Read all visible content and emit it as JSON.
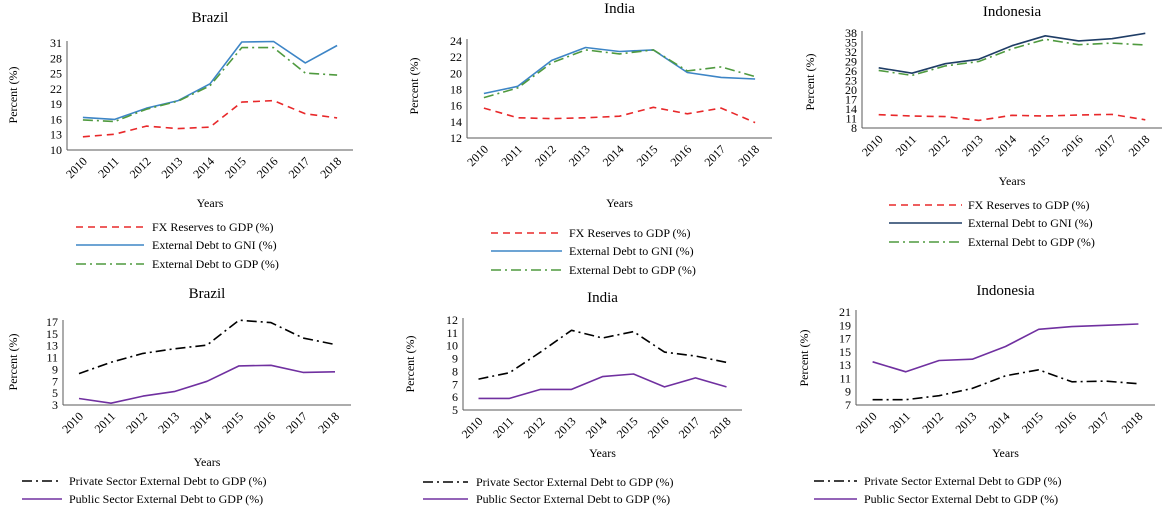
{
  "chart_data": [
    {
      "type": "line",
      "title": "Brazil",
      "xlabel": "Years",
      "ylabel": "Percent (%)",
      "categories": [
        "2010",
        "2011",
        "2012",
        "2013",
        "2014",
        "2015",
        "2016",
        "2017",
        "2018"
      ],
      "yticks": [
        10,
        13,
        16,
        19,
        22,
        25,
        28,
        31
      ],
      "ylim": [
        10,
        31
      ],
      "series": [
        {
          "name": "FX Reserves to GDP (%)",
          "color": "#e8282a",
          "style": "dash",
          "values": [
            12.6,
            13.1,
            14.7,
            14.2,
            14.5,
            19.4,
            19.7,
            17.1,
            16.3
          ]
        },
        {
          "name": "External Debt to GNI (%)",
          "color": "#3d85c6",
          "style": "solid",
          "values": [
            16.4,
            16.0,
            18.2,
            19.7,
            23.0,
            31.2,
            31.3,
            27.1,
            30.5
          ]
        },
        {
          "name": "External Debt to GDP (%)",
          "color": "#4f9a3f",
          "style": "dashdot",
          "values": [
            15.9,
            15.6,
            18.0,
            19.6,
            22.6,
            30.1,
            30.1,
            25.1,
            24.7
          ]
        }
      ]
    },
    {
      "type": "line",
      "title": "India",
      "xlabel": "Years",
      "ylabel": "Percent (%)",
      "categories": [
        "2010",
        "2011",
        "2012",
        "2013",
        "2014",
        "2015",
        "2016",
        "2017",
        "2018"
      ],
      "yticks": [
        12,
        14,
        16,
        18,
        20,
        22,
        24
      ],
      "ylim": [
        12,
        24
      ],
      "series": [
        {
          "name": "FX Reserves to GDP (%)",
          "color": "#e8282a",
          "style": "dash",
          "values": [
            15.7,
            14.5,
            14.4,
            14.5,
            14.7,
            15.8,
            15.0,
            15.7,
            13.9
          ]
        },
        {
          "name": "External Debt to GNI (%)",
          "color": "#3d85c6",
          "style": "solid",
          "values": [
            17.5,
            18.4,
            21.6,
            23.2,
            22.7,
            22.9,
            20.1,
            19.5,
            19.3
          ]
        },
        {
          "name": "External Debt to GDP (%)",
          "color": "#4f9a3f",
          "style": "dashdot",
          "values": [
            17.0,
            18.2,
            21.3,
            22.9,
            22.4,
            22.9,
            20.3,
            20.8,
            19.6
          ]
        }
      ]
    },
    {
      "type": "line",
      "title": "Indonesia",
      "xlabel": "Years",
      "ylabel": "Percent (%)",
      "categories": [
        "2010",
        "2011",
        "2012",
        "2013",
        "2014",
        "2015",
        "2016",
        "2017",
        "2018"
      ],
      "yticks": [
        8,
        11,
        14,
        17,
        20,
        23,
        26,
        29,
        32,
        35,
        38
      ],
      "ylim": [
        8,
        38
      ],
      "series": [
        {
          "name": "FX Reserves to GDP (%)",
          "color": "#e8282a",
          "style": "dash",
          "values": [
            12.2,
            11.8,
            11.6,
            10.4,
            12.0,
            11.8,
            12.1,
            12.3,
            10.6
          ]
        },
        {
          "name": "External Debt to GNI (%)",
          "color": "#1f3d66",
          "style": "solid",
          "values": [
            27.0,
            25.3,
            28.3,
            29.7,
            34.0,
            37.1,
            35.5,
            36.2,
            37.9
          ]
        },
        {
          "name": "External Debt to GDP (%)",
          "color": "#4f9a3f",
          "style": "dashdot",
          "values": [
            26.2,
            24.6,
            27.6,
            29.0,
            33.0,
            36.0,
            34.3,
            34.8,
            34.2
          ]
        }
      ]
    },
    {
      "type": "line",
      "title": "Brazil",
      "xlabel": "Years",
      "ylabel": "Percent (%)",
      "categories": [
        "2010",
        "2011",
        "2012",
        "2013",
        "2014",
        "2015",
        "2016",
        "2017",
        "2018"
      ],
      "yticks": [
        3,
        5,
        7,
        9,
        11,
        13,
        15,
        17
      ],
      "ylim": [
        3,
        17
      ],
      "series": [
        {
          "name": "Private Sector External Debt to GDP (%)",
          "color": "#000000",
          "style": "dashdot",
          "values": [
            8.3,
            10.2,
            11.7,
            12.5,
            13.1,
            17.3,
            16.9,
            14.3,
            13.2
          ]
        },
        {
          "name": "Public Sector External Debt to GDP (%)",
          "color": "#7030a0",
          "style": "solid",
          "values": [
            4.1,
            3.3,
            4.5,
            5.3,
            7.0,
            9.6,
            9.7,
            8.5,
            8.6
          ]
        }
      ]
    },
    {
      "type": "line",
      "title": "India",
      "xlabel": "Years",
      "ylabel": "Percent (%)",
      "categories": [
        "2010",
        "2011",
        "2012",
        "2013",
        "2014",
        "2015",
        "2016",
        "2017",
        "2018"
      ],
      "yticks": [
        5,
        6,
        7,
        8,
        9,
        10,
        11,
        12
      ],
      "ylim": [
        5,
        12
      ],
      "series": [
        {
          "name": "Private Sector External Debt to GDP (%)",
          "color": "#000000",
          "style": "dashdot",
          "values": [
            7.4,
            7.9,
            9.5,
            11.2,
            10.6,
            11.1,
            9.5,
            9.2,
            8.7
          ]
        },
        {
          "name": "Public Sector External Debt to GDP (%)",
          "color": "#7030a0",
          "style": "solid",
          "values": [
            5.9,
            5.9,
            6.6,
            6.6,
            7.6,
            7.8,
            6.8,
            7.5,
            6.8
          ]
        }
      ]
    },
    {
      "type": "line",
      "title": "Indonesia",
      "xlabel": "Years",
      "ylabel": "Percent (%)",
      "categories": [
        "2010",
        "2011",
        "2012",
        "2013",
        "2014",
        "2015",
        "2016",
        "2017",
        "2018"
      ],
      "yticks": [
        7,
        9,
        11,
        13,
        15,
        17,
        19,
        21
      ],
      "ylim": [
        7,
        21
      ],
      "series": [
        {
          "name": "Private Sector External Debt to GDP (%)",
          "color": "#000000",
          "style": "dashdot",
          "values": [
            7.8,
            7.8,
            8.4,
            9.5,
            11.4,
            12.3,
            10.5,
            10.6,
            10.2
          ]
        },
        {
          "name": "Public Sector External Debt to GDP (%)",
          "color": "#7030a0",
          "style": "solid",
          "values": [
            13.5,
            12.0,
            13.7,
            13.9,
            15.8,
            18.4,
            18.8,
            19.0,
            19.2
          ]
        }
      ]
    }
  ]
}
